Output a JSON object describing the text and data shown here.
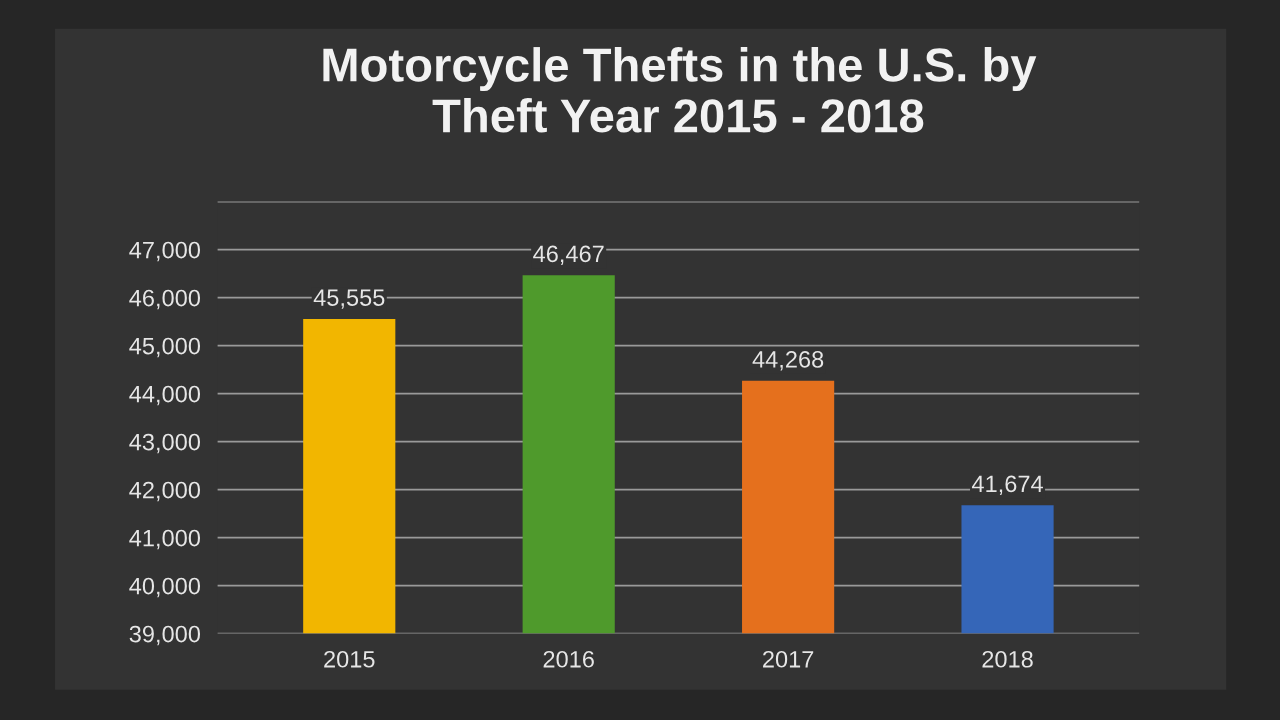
{
  "chart_data": {
    "type": "bar",
    "title": "Motorcycle Thefts in the U.S. by\nTheft Year 2015 - 2018",
    "categories": [
      "2015",
      "2016",
      "2017",
      "2018"
    ],
    "values": [
      45555,
      46467,
      44268,
      41674
    ],
    "colors": [
      "#f2b600",
      "#4f9a2c",
      "#e5701d",
      "#3566b8"
    ],
    "value_labels": [
      "45,555",
      "46,467",
      "44,268",
      "41,674"
    ],
    "ylim": [
      39000,
      48000
    ],
    "yticks": [
      {
        "value": 39000,
        "label": "39,000"
      },
      {
        "value": 40000,
        "label": "40,000"
      },
      {
        "value": 41000,
        "label": "41,000"
      },
      {
        "value": 42000,
        "label": "42,000"
      },
      {
        "value": 43000,
        "label": "43,000"
      },
      {
        "value": 44000,
        "label": "44,000"
      },
      {
        "value": 45000,
        "label": "45,000"
      },
      {
        "value": 46000,
        "label": "46,000"
      },
      {
        "value": 47000,
        "label": "47,000"
      },
      {
        "value": 48000,
        "label": null
      }
    ],
    "grid": "y"
  }
}
